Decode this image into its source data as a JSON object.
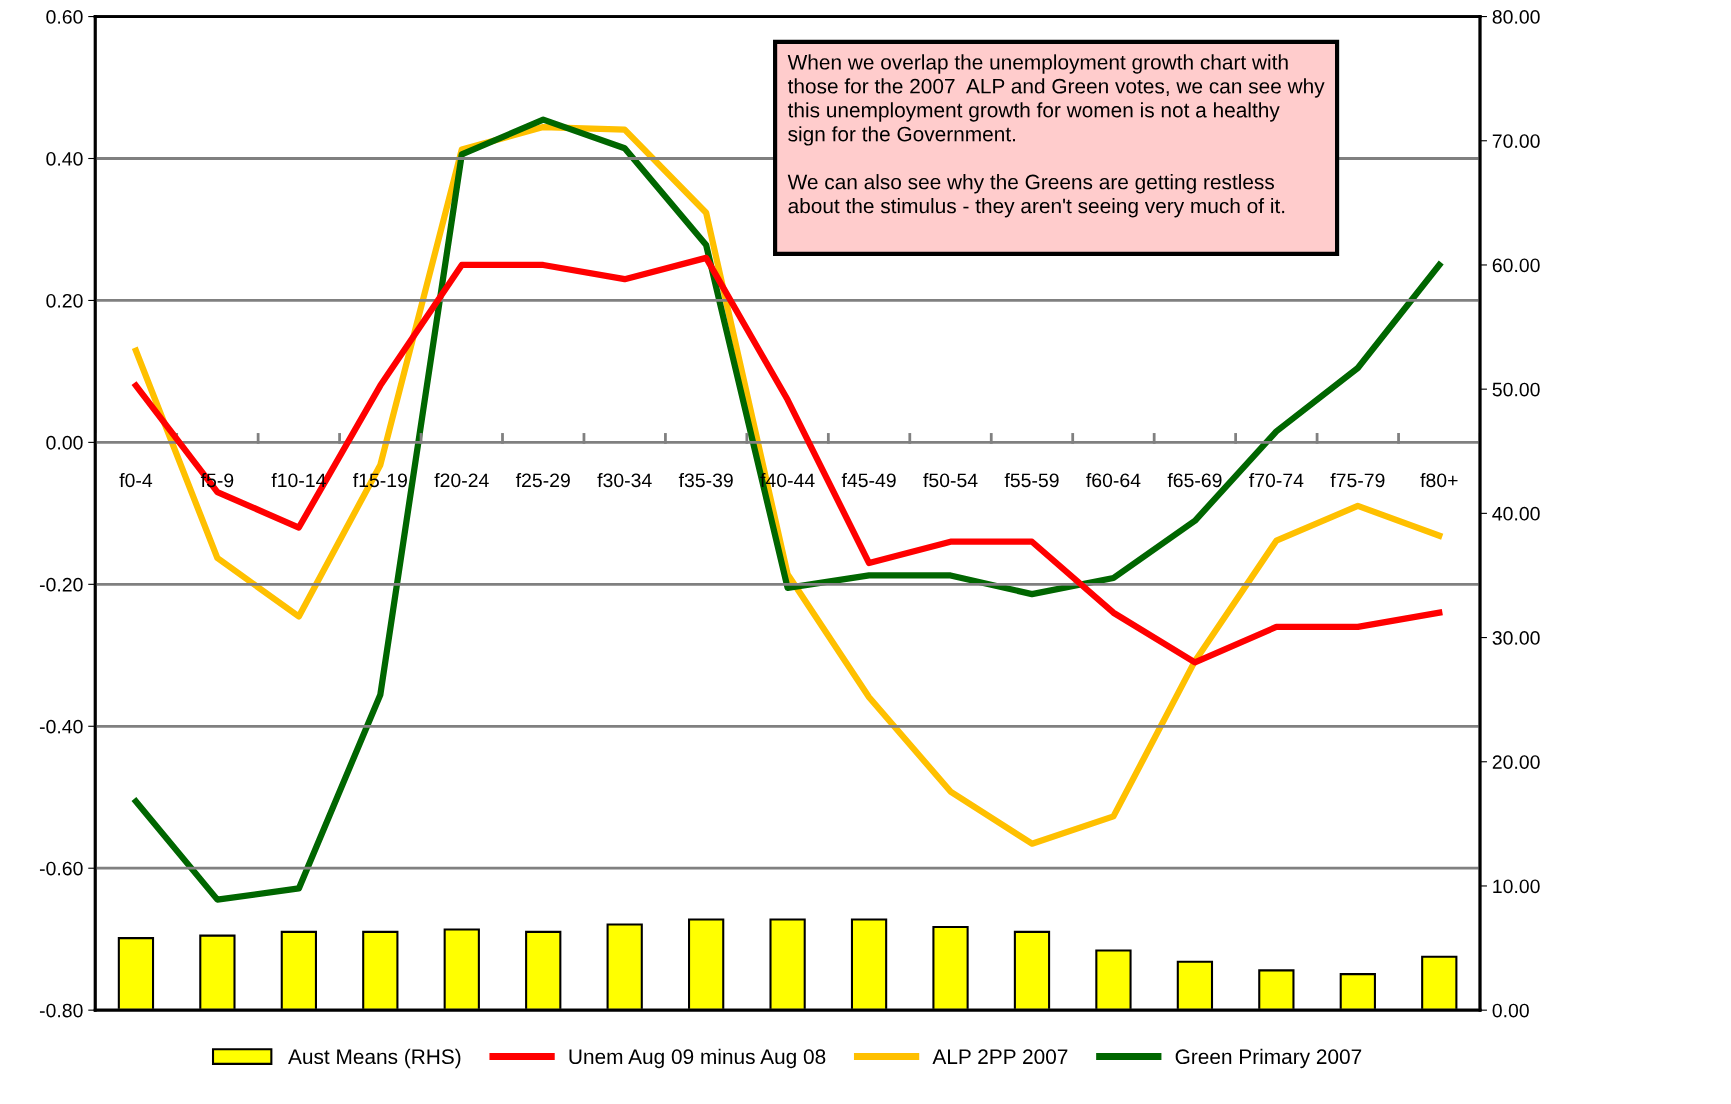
{
  "chart_data": {
    "type": "line",
    "categories": [
      "f0-4",
      "f5-9",
      "f10-14",
      "f15-19",
      "f20-24",
      "f25-29",
      "f30-34",
      "f35-39",
      "f40-44",
      "f45-49",
      "f50-54",
      "f55-59",
      "f60-64",
      "f65-69",
      "f70-74",
      "f75-79",
      "f80+"
    ],
    "series": [
      {
        "name": "Aust Means (RHS)",
        "type": "bar",
        "axis": "y2",
        "color": "#ffff00",
        "values": [
          5.8,
          6.0,
          6.3,
          6.3,
          6.5,
          6.3,
          6.9,
          7.3,
          7.3,
          7.3,
          6.7,
          6.3,
          4.8,
          3.9,
          3.2,
          2.9,
          4.3
        ]
      },
      {
        "name": "Unem Aug 09 minus Aug 08",
        "color": "#ff0000",
        "values": [
          0.08,
          -0.07,
          -0.12,
          0.08,
          0.25,
          0.25,
          0.23,
          0.26,
          0.06,
          -0.17,
          -0.14,
          -0.14,
          -0.24,
          -0.31,
          -0.26,
          -0.26,
          -0.24
        ]
      },
      {
        "name": "ALP 2PP 2007",
        "axis": "y2",
        "color": "#ffc000",
        "values": [
          53.1,
          36.4,
          31.7,
          43.9,
          69.3,
          71.1,
          70.9,
          64.2,
          35.1,
          25.2,
          17.6,
          13.4,
          15.6,
          28.1,
          37.8,
          40.6,
          38.2
        ]
      },
      {
        "name": "Green Primary 2007",
        "axis": "y2",
        "color": "#006600",
        "values": [
          16.8,
          8.9,
          9.8,
          25.4,
          68.9,
          71.7,
          69.4,
          61.6,
          34.0,
          35.0,
          35.0,
          33.5,
          34.8,
          39.4,
          46.6,
          51.7,
          60.0
        ]
      }
    ],
    "ylim": [
      -0.8,
      0.6
    ],
    "yticks": [
      {
        "value": -0.8,
        "label": "-0.80"
      },
      {
        "value": -0.6,
        "label": "-0.60"
      },
      {
        "value": -0.4,
        "label": "-0.40"
      },
      {
        "value": -0.2,
        "label": "-0.20"
      },
      {
        "value": 0,
        "label": "0.00"
      },
      {
        "value": 0.2,
        "label": "0.20"
      },
      {
        "value": 0.4,
        "label": "0.40"
      },
      {
        "value": 0.6,
        "label": "0.60"
      }
    ],
    "y2lim": [
      0,
      80
    ],
    "y2ticks": [
      {
        "value": 0,
        "label": "0.00"
      },
      {
        "value": 10,
        "label": "10.00"
      },
      {
        "value": 20,
        "label": "20.00"
      },
      {
        "value": 30,
        "label": "30.00"
      },
      {
        "value": 40,
        "label": "40.00"
      },
      {
        "value": 50,
        "label": "50.00"
      },
      {
        "value": 60,
        "label": "60.00"
      },
      {
        "value": 70,
        "label": "70.00"
      },
      {
        "value": 80,
        "label": "80.00"
      }
    ],
    "grid": "y",
    "legend": "bottom",
    "marker": "none",
    "line_style": "solid",
    "annotations": [
      "When we overlap the unemployment growth chart with\nthose for the 2007  ALP and Green votes, we can see why\nthis unemployment growth for women is not a healthy\nsign for the Government.\n\nWe can also see why the Greens are getting restless\nabout the stimulus - they aren't seeing very much of it.\n "
    ]
  }
}
